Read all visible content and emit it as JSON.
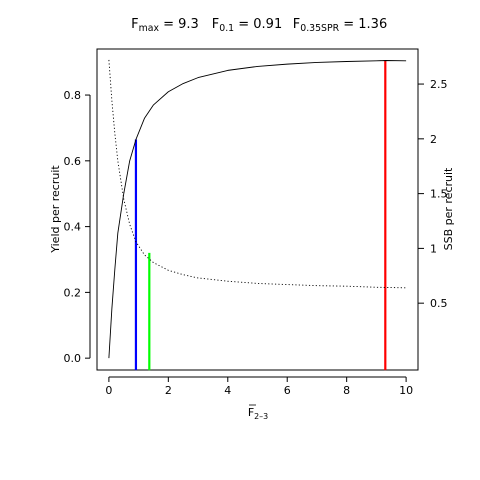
{
  "chart_data": {
    "type": "line",
    "title_parts": [
      {
        "main": "F",
        "sub": "max",
        "value": " = 9.3"
      },
      {
        "main": "F",
        "sub": "0.1",
        "value": " = 0.91"
      },
      {
        "main": "F",
        "sub": "0.35SPR",
        "value": " = 1.36"
      }
    ],
    "xlabel": {
      "main": "F",
      "sub": "2–3"
    },
    "ylabel_left": "Yield per recruit",
    "ylabel_right": "SSB per recruit",
    "xlim": [
      -0.4,
      10.4
    ],
    "ylim_left": [
      -0.036,
      0.94
    ],
    "ylim_right": [
      -0.11,
      2.82
    ],
    "x_ticks": [
      "0",
      "2",
      "4",
      "6",
      "8",
      "10"
    ],
    "y_left_ticks": [
      "0.0",
      "0.2",
      "0.4",
      "0.6",
      "0.8"
    ],
    "y_right_ticks": [
      "0.5",
      "1",
      "1.5",
      "2",
      "2.5"
    ],
    "series": [
      {
        "name": "Yield per recruit",
        "axis": "left",
        "style": "solid",
        "color": "#000000",
        "x": [
          0,
          0.1,
          0.2,
          0.3,
          0.5,
          0.7,
          0.91,
          1.2,
          1.5,
          2,
          2.5,
          3,
          4,
          5,
          6,
          7,
          8,
          9,
          9.3,
          10
        ],
        "y": [
          0.0,
          0.15,
          0.27,
          0.38,
          0.5,
          0.6,
          0.665,
          0.73,
          0.77,
          0.81,
          0.835,
          0.853,
          0.875,
          0.887,
          0.894,
          0.899,
          0.902,
          0.904,
          0.905,
          0.904
        ]
      },
      {
        "name": "SSB per recruit",
        "axis": "right",
        "style": "dotted",
        "color": "#000000",
        "x": [
          0,
          0.1,
          0.2,
          0.3,
          0.5,
          0.7,
          0.91,
          1.2,
          1.5,
          2,
          2.5,
          3,
          4,
          5,
          6,
          7,
          8,
          9,
          10
        ],
        "y": [
          2.72,
          2.35,
          2.05,
          1.8,
          1.45,
          1.22,
          1.06,
          0.94,
          0.87,
          0.8,
          0.76,
          0.73,
          0.7,
          0.68,
          0.67,
          0.66,
          0.655,
          0.645,
          0.64
        ]
      }
    ],
    "reference_lines": [
      {
        "name": "Fmax",
        "x": 9.3,
        "y_top": 0.905,
        "color": "#ff0000"
      },
      {
        "name": "F0.1",
        "x": 0.91,
        "y_top": 0.665,
        "color": "#0000ff"
      },
      {
        "name": "F0.35SPR",
        "x": 1.36,
        "y_top": 0.32,
        "color": "#00ff00"
      }
    ]
  }
}
